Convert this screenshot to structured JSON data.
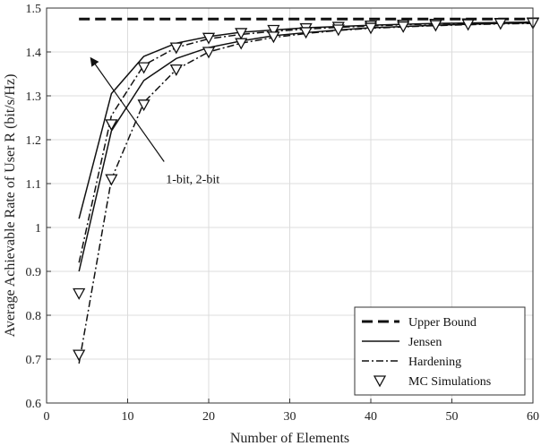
{
  "chart_data": {
    "type": "line",
    "xlabel": "Number of Elements",
    "ylabel": "Average Achievable Rate of User R (bit/s/Hz)",
    "xlim": [
      0,
      60
    ],
    "ylim": [
      0.6,
      1.5
    ],
    "xticks": [
      0,
      10,
      20,
      30,
      40,
      50,
      60
    ],
    "yticks": [
      0.6,
      0.7,
      0.8,
      0.9,
      1,
      1.1,
      1.2,
      1.3,
      1.4,
      1.5
    ],
    "grid": true,
    "legend_position": "bottom-right",
    "legend": [
      {
        "label": "Upper Bound",
        "style": "dashed-thick"
      },
      {
        "label": "Jensen",
        "style": "solid"
      },
      {
        "label": "Hardening",
        "style": "dashdot"
      },
      {
        "label": "MC Simulations",
        "style": "triangle-down-marker"
      }
    ],
    "annotation": {
      "text": "1-bit, 2-bit",
      "arrow_from": [
        14.5,
        1.15
      ],
      "arrow_to": [
        5.5,
        1.385
      ]
    },
    "series": [
      {
        "name": "Upper Bound",
        "style": "dashed-thick",
        "x": [
          4,
          60
        ],
        "y": [
          1.475,
          1.475
        ]
      },
      {
        "style": "solid",
        "x": [
          4,
          8,
          12,
          16,
          20,
          24,
          28,
          32,
          36,
          40,
          44,
          48,
          52,
          56,
          60
        ],
        "y": [
          1.02,
          1.305,
          1.39,
          1.42,
          1.435,
          1.445,
          1.45,
          1.455,
          1.458,
          1.461,
          1.463,
          1.465,
          1.466,
          1.467,
          1.468
        ]
      },
      {
        "style": "dashdot",
        "x": [
          4,
          8,
          12,
          16,
          20,
          24,
          28,
          32,
          36,
          40,
          44,
          48,
          52,
          56,
          60
        ],
        "y": [
          0.92,
          1.255,
          1.37,
          1.41,
          1.43,
          1.44,
          1.447,
          1.452,
          1.456,
          1.459,
          1.462,
          1.464,
          1.465,
          1.466,
          1.467
        ]
      },
      {
        "style": "solid",
        "x": [
          4,
          8,
          12,
          16,
          20,
          24,
          28,
          32,
          36,
          40,
          44,
          48,
          52,
          56,
          60
        ],
        "y": [
          0.9,
          1.22,
          1.335,
          1.385,
          1.41,
          1.425,
          1.437,
          1.444,
          1.45,
          1.455,
          1.458,
          1.461,
          1.463,
          1.465,
          1.466
        ]
      },
      {
        "style": "dashdot",
        "x": [
          4,
          8,
          12,
          16,
          20,
          24,
          28,
          32,
          36,
          40,
          44,
          48,
          52,
          56,
          60
        ],
        "y": [
          0.69,
          1.11,
          1.285,
          1.36,
          1.4,
          1.42,
          1.433,
          1.442,
          1.449,
          1.454,
          1.457,
          1.46,
          1.462,
          1.464,
          1.465
        ]
      },
      {
        "name": "MC Simulations",
        "style": "triangle-down-marker",
        "x": [
          4,
          8,
          12,
          16,
          20,
          24,
          28,
          32,
          36,
          40,
          44,
          48,
          52,
          56,
          60
        ],
        "y": [
          0.85,
          1.235,
          1.365,
          1.41,
          1.432,
          1.443,
          1.45,
          1.454,
          1.457,
          1.46,
          1.462,
          1.464,
          1.465,
          1.466,
          1.467
        ]
      },
      {
        "name": "MC Simulations",
        "style": "triangle-down-marker",
        "x": [
          4,
          8,
          12,
          16,
          20,
          24,
          28,
          32,
          36,
          40,
          44,
          48,
          52,
          56,
          60
        ],
        "y": [
          0.71,
          1.11,
          1.28,
          1.36,
          1.4,
          1.42,
          1.435,
          1.445,
          1.451,
          1.455,
          1.458,
          1.461,
          1.463,
          1.465,
          1.466
        ]
      }
    ]
  }
}
